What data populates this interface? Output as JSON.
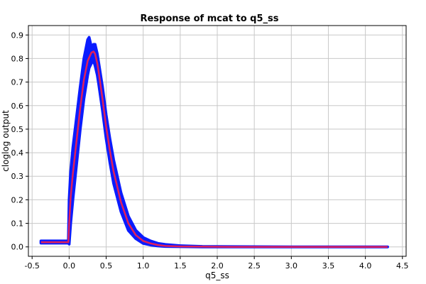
{
  "chart_data": {
    "type": "line",
    "title": "Response of mcat to q5_ss",
    "xlabel": "q5_ss",
    "ylabel": "cloglog output",
    "xlim": [
      -0.55,
      4.55
    ],
    "ylim": [
      -0.04,
      0.94
    ],
    "xticks": [
      -0.5,
      0.0,
      0.5,
      1.0,
      1.5,
      2.0,
      2.5,
      3.0,
      3.5,
      4.0,
      4.5
    ],
    "xtick_labels": [
      "-0.5",
      "0.0",
      "0.5",
      "1.0",
      "1.5",
      "2.0",
      "2.5",
      "3.0",
      "3.5",
      "4.0",
      "4.5"
    ],
    "yticks": [
      0.0,
      0.1,
      0.2,
      0.3,
      0.4,
      0.5,
      0.6,
      0.7,
      0.8,
      0.9
    ],
    "ytick_labels": [
      "0.0",
      "0.1",
      "0.2",
      "0.3",
      "0.4",
      "0.5",
      "0.6",
      "0.7",
      "0.8",
      "0.9"
    ],
    "grid": true,
    "legend": "none",
    "colors": {
      "band": "#0a1cff",
      "mean": "#e0205a",
      "grid": "#c8c8c8"
    },
    "series": [
      {
        "role": "band",
        "x": [
          -0.38,
          -0.01,
          0.0,
          0.02,
          0.05,
          0.1,
          0.15,
          0.2,
          0.25,
          0.27,
          0.3,
          0.33,
          0.35,
          0.38,
          0.4,
          0.45,
          0.5,
          0.55,
          0.6,
          0.7,
          0.8,
          0.9,
          1.0,
          1.1,
          1.2,
          1.3,
          1.5,
          1.8,
          2.2,
          3.0,
          4.3
        ],
        "y_upper": [
          0.025,
          0.025,
          0.2,
          0.32,
          0.42,
          0.55,
          0.68,
          0.8,
          0.88,
          0.89,
          0.85,
          0.86,
          0.86,
          0.82,
          0.78,
          0.68,
          0.56,
          0.46,
          0.37,
          0.23,
          0.13,
          0.07,
          0.04,
          0.025,
          0.015,
          0.01,
          0.005,
          0.002,
          0.001,
          0.0,
          0.0
        ],
        "y_lower": [
          0.016,
          0.016,
          0.012,
          0.1,
          0.2,
          0.35,
          0.5,
          0.63,
          0.73,
          0.76,
          0.78,
          0.79,
          0.77,
          0.73,
          0.69,
          0.58,
          0.46,
          0.36,
          0.27,
          0.15,
          0.07,
          0.035,
          0.015,
          0.008,
          0.004,
          0.002,
          0.001,
          0.0,
          0.0,
          0.0,
          0.0
        ]
      },
      {
        "role": "mean",
        "x": [
          -0.38,
          -0.01,
          0.0,
          0.02,
          0.05,
          0.1,
          0.15,
          0.2,
          0.25,
          0.3,
          0.33,
          0.35,
          0.38,
          0.4,
          0.45,
          0.5,
          0.55,
          0.6,
          0.7,
          0.8,
          0.9,
          1.0,
          1.1,
          1.2,
          1.3,
          1.5,
          1.8,
          2.2,
          3.0,
          4.3
        ],
        "y": [
          0.02,
          0.02,
          0.1,
          0.21,
          0.31,
          0.45,
          0.59,
          0.71,
          0.79,
          0.825,
          0.83,
          0.82,
          0.78,
          0.74,
          0.63,
          0.51,
          0.41,
          0.32,
          0.19,
          0.1,
          0.05,
          0.025,
          0.015,
          0.008,
          0.004,
          0.002,
          0.001,
          0.0,
          0.0,
          0.0
        ]
      }
    ]
  }
}
